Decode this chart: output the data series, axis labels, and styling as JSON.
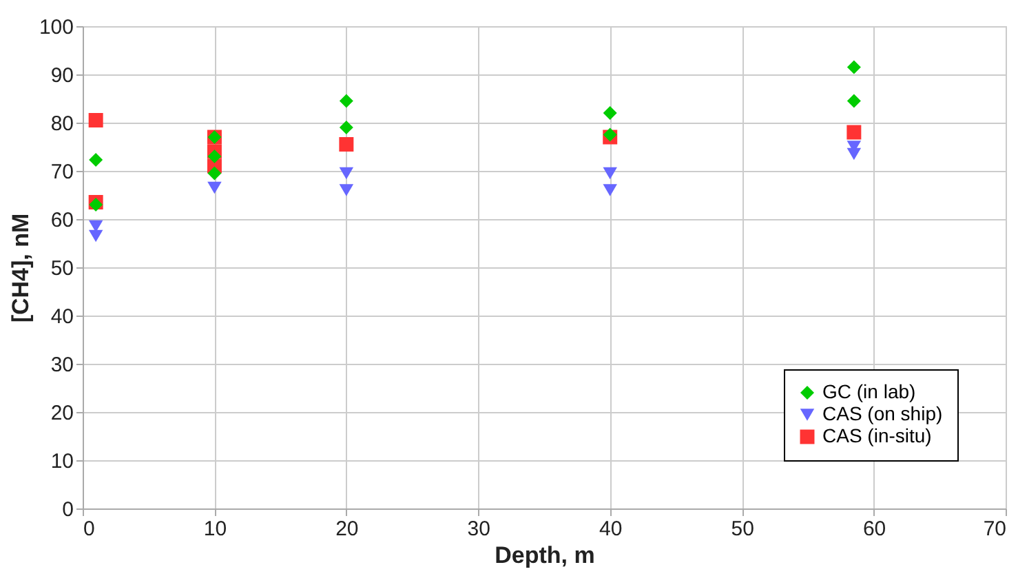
{
  "chart_data": {
    "type": "scatter",
    "xlabel": "Depth, m",
    "ylabel": "[CH4], nM",
    "xlim": [
      0,
      70
    ],
    "ylim": [
      0,
      100
    ],
    "xticks": [
      0,
      10,
      20,
      30,
      40,
      50,
      60,
      70
    ],
    "yticks": [
      0,
      10,
      20,
      30,
      40,
      50,
      60,
      70,
      80,
      90,
      100
    ],
    "grid": true,
    "legend": "bottom right",
    "series": [
      {
        "name": "GC (in lab)",
        "color": "#00cc00",
        "marker": "diamond",
        "x": [
          1,
          1,
          10,
          10,
          10,
          20,
          20,
          40,
          40,
          58.5,
          58.5
        ],
        "values": [
          72.3,
          63,
          77,
          73,
          69.5,
          84.5,
          79,
          82,
          77.5,
          91.5,
          84.5
        ]
      },
      {
        "name": "CAS (on ship)",
        "color": "#6666ff",
        "marker": "triangle",
        "x": [
          1,
          1,
          10,
          20,
          20,
          40,
          40,
          58.5,
          58.5
        ],
        "values": [
          58.5,
          56.5,
          66.5,
          69.5,
          66,
          69.5,
          66,
          75,
          73.5
        ]
      },
      {
        "name": "CAS (in-situ)",
        "color": "#ff3333",
        "marker": "square",
        "x": [
          1,
          1,
          10,
          10,
          10,
          20,
          40,
          58.5
        ],
        "values": [
          80.5,
          63.5,
          77,
          74,
          71,
          75.5,
          77,
          78
        ]
      }
    ]
  }
}
